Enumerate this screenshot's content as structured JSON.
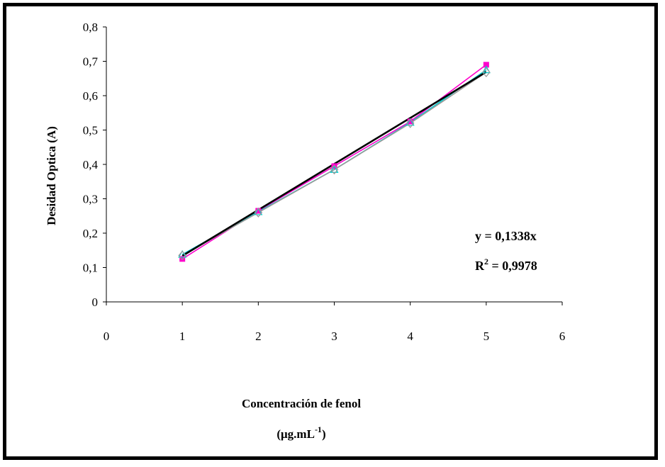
{
  "chart_data": {
    "type": "scatter",
    "title": "",
    "ylabel": "Desidad Optica  (A)",
    "xlabel_line1": "Concentración de fenol",
    "xlabel_line2_prefix": "(μg.mL",
    "xlabel_line2_sup": "-1",
    "xlabel_line2_suffix": ")",
    "xlim": [
      0,
      6
    ],
    "ylim": [
      0,
      0.8
    ],
    "x_ticks": [
      "0",
      "1",
      "2",
      "3",
      "4",
      "5",
      "6"
    ],
    "y_ticks": [
      "0",
      "0,1",
      "0,2",
      "0,3",
      "0,4",
      "0,5",
      "0,6",
      "0,7",
      "0,8"
    ],
    "grid": false,
    "series": [
      {
        "color": "#ff00cc",
        "marker": "square",
        "x": [
          1,
          2,
          3,
          4,
          5
        ],
        "y": [
          0.125,
          0.265,
          0.395,
          0.525,
          0.69
        ]
      },
      {
        "color": "#00cccc",
        "marker": "triangle",
        "x": [
          1,
          2,
          3,
          4,
          5
        ],
        "y": [
          0.138,
          0.262,
          0.385,
          0.522,
          0.675
        ]
      },
      {
        "color": "#999999",
        "marker": "diamond",
        "x": [
          1,
          2,
          3,
          4,
          5
        ],
        "y": [
          0.135,
          0.26,
          0.385,
          0.52,
          0.668
        ]
      }
    ],
    "trendline": {
      "slope": 0.1338,
      "color": "#000000"
    },
    "equation": "y = 0,1338x",
    "r2_prefix": "R",
    "r2_sup": "2",
    "r2_suffix": " = 0,9978"
  }
}
